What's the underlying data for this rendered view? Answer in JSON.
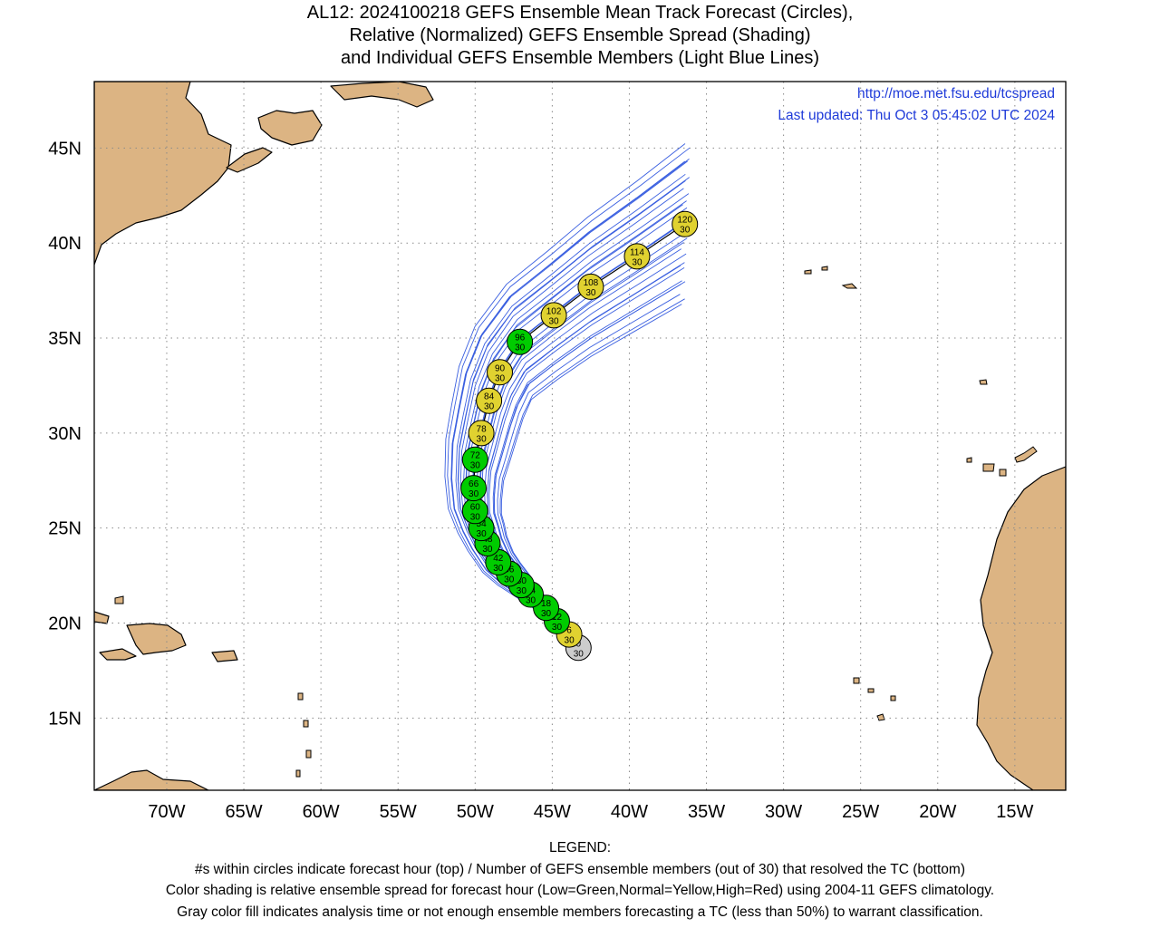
{
  "title": {
    "line1": "AL12: 2024100218 GEFS Ensemble Mean Track Forecast (Circles),",
    "line2": "Relative (Normalized) GEFS Ensemble Spread (Shading)",
    "line3": "and Individual GEFS Ensemble Members (Light Blue Lines)"
  },
  "credits": {
    "url": "http://moe.met.fsu.edu/tcspread",
    "updated": "Last updated: Thu Oct 3 05:45:02 UTC 2024"
  },
  "axes": {
    "lat_labels": [
      "15N",
      "20N",
      "25N",
      "30N",
      "35N",
      "40N",
      "45N"
    ],
    "lat_values": [
      15,
      20,
      25,
      30,
      35,
      40,
      45
    ],
    "lon_labels": [
      "70W",
      "65W",
      "60W",
      "55W",
      "50W",
      "45W",
      "40W",
      "35W",
      "30W",
      "25W",
      "20W",
      "15W"
    ],
    "lon_values": [
      -70,
      -65,
      -60,
      -55,
      -50,
      -45,
      -40,
      -35,
      -30,
      -25,
      -20,
      -15
    ],
    "lon_range": [
      -74.7,
      -11.7
    ],
    "lat_range": [
      11.2,
      48.5
    ],
    "grid": "dotted"
  },
  "colors": {
    "land": "#dcb483",
    "ocean": "#ffffff",
    "member_tracks": "#3a5fe0",
    "mean_track": "#000000",
    "low_spread": "#00cc00",
    "normal_spread": "#e0d230",
    "high_spread": "#e02020",
    "analysis": "#cccccc",
    "credit_text": "#1f3bd9"
  },
  "track_points": [
    {
      "hour": "0",
      "members": "30",
      "lat": 18.7,
      "lon": -43.3,
      "spread": "analysis"
    },
    {
      "hour": "6",
      "members": "30",
      "lat": 19.4,
      "lon": -43.9,
      "spread": "normal"
    },
    {
      "hour": "12",
      "members": "30",
      "lat": 20.1,
      "lon": -44.7,
      "spread": "low"
    },
    {
      "hour": "18",
      "members": "30",
      "lat": 20.8,
      "lon": -45.4,
      "spread": "low"
    },
    {
      "hour": "24",
      "members": "30",
      "lat": 21.5,
      "lon": -46.4,
      "spread": "low"
    },
    {
      "hour": "30",
      "members": "30",
      "lat": 22.0,
      "lon": -47.0,
      "spread": "low"
    },
    {
      "hour": "36",
      "members": "30",
      "lat": 22.6,
      "lon": -47.8,
      "spread": "low"
    },
    {
      "hour": "42",
      "members": "30",
      "lat": 23.2,
      "lon": -48.5,
      "spread": "low"
    },
    {
      "hour": "48",
      "members": "30",
      "lat": 24.2,
      "lon": -49.2,
      "spread": "low"
    },
    {
      "hour": "54",
      "members": "30",
      "lat": 25.0,
      "lon": -49.6,
      "spread": "low"
    },
    {
      "hour": "60",
      "members": "30",
      "lat": 25.9,
      "lon": -50.0,
      "spread": "low"
    },
    {
      "hour": "66",
      "members": "30",
      "lat": 27.1,
      "lon": -50.1,
      "spread": "low"
    },
    {
      "hour": "72",
      "members": "30",
      "lat": 28.6,
      "lon": -50.0,
      "spread": "low"
    },
    {
      "hour": "78",
      "members": "30",
      "lat": 30.0,
      "lon": -49.6,
      "spread": "normal"
    },
    {
      "hour": "84",
      "members": "30",
      "lat": 31.7,
      "lon": -49.1,
      "spread": "normal"
    },
    {
      "hour": "90",
      "members": "30",
      "lat": 33.2,
      "lon": -48.4,
      "spread": "normal"
    },
    {
      "hour": "96",
      "members": "30",
      "lat": 34.8,
      "lon": -47.1,
      "spread": "low"
    },
    {
      "hour": "102",
      "members": "30",
      "lat": 36.2,
      "lon": -44.9,
      "spread": "normal"
    },
    {
      "hour": "108",
      "members": "30",
      "lat": 37.7,
      "lon": -42.5,
      "spread": "normal"
    },
    {
      "hour": "114",
      "members": "30",
      "lat": 39.3,
      "lon": -39.5,
      "spread": "normal"
    },
    {
      "hour": "120",
      "members": "30",
      "lat": 41.0,
      "lon": -36.4,
      "spread": "normal"
    }
  ],
  "legend": {
    "heading": "LEGEND:",
    "line1": "#s within circles indicate forecast hour (top) / Number of GEFS ensemble members (out of 30) that resolved the TC (bottom)",
    "line2": "Color shading is relative ensemble spread for forecast hour (Low=Green,Normal=Yellow,High=Red) using 2004-11 GEFS climatology.",
    "line3": "Gray color fill indicates analysis time or not enough ensemble members forecasting a TC (less than 50%) to warrant classification."
  }
}
